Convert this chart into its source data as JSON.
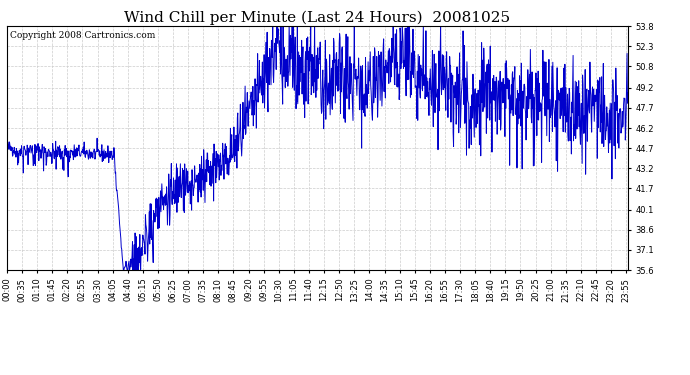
{
  "title": "Wind Chill per Minute (Last 24 Hours)  20081025",
  "copyright": "Copyright 2008 Cartronics.com",
  "line_color": "#0000cc",
  "bg_color": "#ffffff",
  "grid_color": "#cccccc",
  "ylim": [
    35.6,
    53.8
  ],
  "yticks": [
    35.6,
    37.1,
    38.6,
    40.1,
    41.7,
    43.2,
    44.7,
    46.2,
    47.7,
    49.2,
    50.8,
    52.3,
    53.8
  ],
  "title_fontsize": 11,
  "copyright_fontsize": 6.5,
  "tick_fontsize": 6,
  "line_width": 0.7,
  "xtick_interval_minutes": 35
}
